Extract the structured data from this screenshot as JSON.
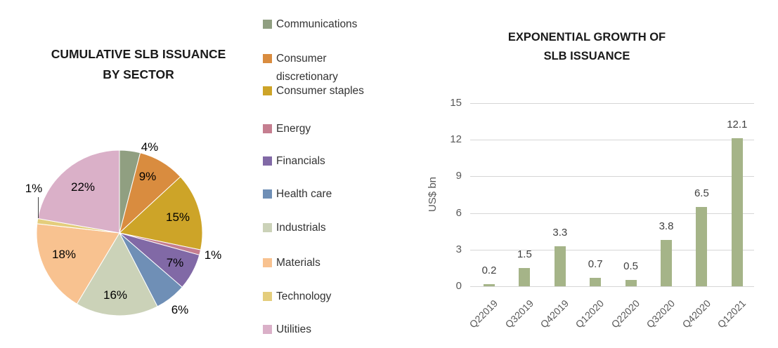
{
  "chart_data": [
    {
      "type": "pie",
      "title": "CUMULATIVE SLB ISSUANCE BY SECTOR",
      "title_lines": [
        "CUMULATIVE SLB ISSUANCE",
        "BY SECTOR"
      ],
      "slices": [
        {
          "label": "Communications",
          "value_pct": 4,
          "display": "4%",
          "color": "#909F81"
        },
        {
          "label": "Consumer discretionary",
          "value_pct": 9,
          "display": "9%",
          "color": "#D98C3F"
        },
        {
          "label": "Consumer staples",
          "value_pct": 15,
          "display": "15%",
          "color": "#CDA428"
        },
        {
          "label": "Energy",
          "value_pct": 1,
          "display": "1%",
          "color": "#C57E90"
        },
        {
          "label": "Financials",
          "value_pct": 7,
          "display": "7%",
          "color": "#8169A6"
        },
        {
          "label": "Health care",
          "value_pct": 6,
          "display": "6%",
          "color": "#6F8FB6"
        },
        {
          "label": "Industrials",
          "value_pct": 16,
          "display": "16%",
          "color": "#CBD2B8"
        },
        {
          "label": "Materials",
          "value_pct": 18,
          "display": "18%",
          "color": "#F8C290"
        },
        {
          "label": "Technology",
          "value_pct": 1,
          "display": "1%",
          "color": "#E4CD7C"
        },
        {
          "label": "Utilities",
          "value_pct": 22,
          "display": "22%",
          "color": "#DAB0C8"
        }
      ],
      "legend_position": "right",
      "data_labels_shown": true
    },
    {
      "type": "bar",
      "title": "EXPONENTIAL GROWTH OF SLB ISSUANCE",
      "title_lines": [
        "EXPONENTIAL GROWTH OF",
        "SLB ISSUANCE"
      ],
      "ylabel": "US$ bn",
      "categories": [
        "Q22019",
        "Q32019",
        "Q42019",
        "Q12020",
        "Q22020",
        "Q32020",
        "Q42020",
        "Q12021"
      ],
      "values": [
        0.2,
        1.5,
        3.3,
        0.7,
        0.5,
        3.8,
        6.5,
        12.1
      ],
      "yticks": [
        0,
        3,
        6,
        9,
        12,
        15
      ],
      "ylim": [
        0,
        15
      ],
      "grid": true,
      "bar_color": "#A5B488",
      "gridline_color": "#D6D6D6",
      "axis_text_color": "#595959",
      "value_label_color": "#404040"
    }
  ]
}
